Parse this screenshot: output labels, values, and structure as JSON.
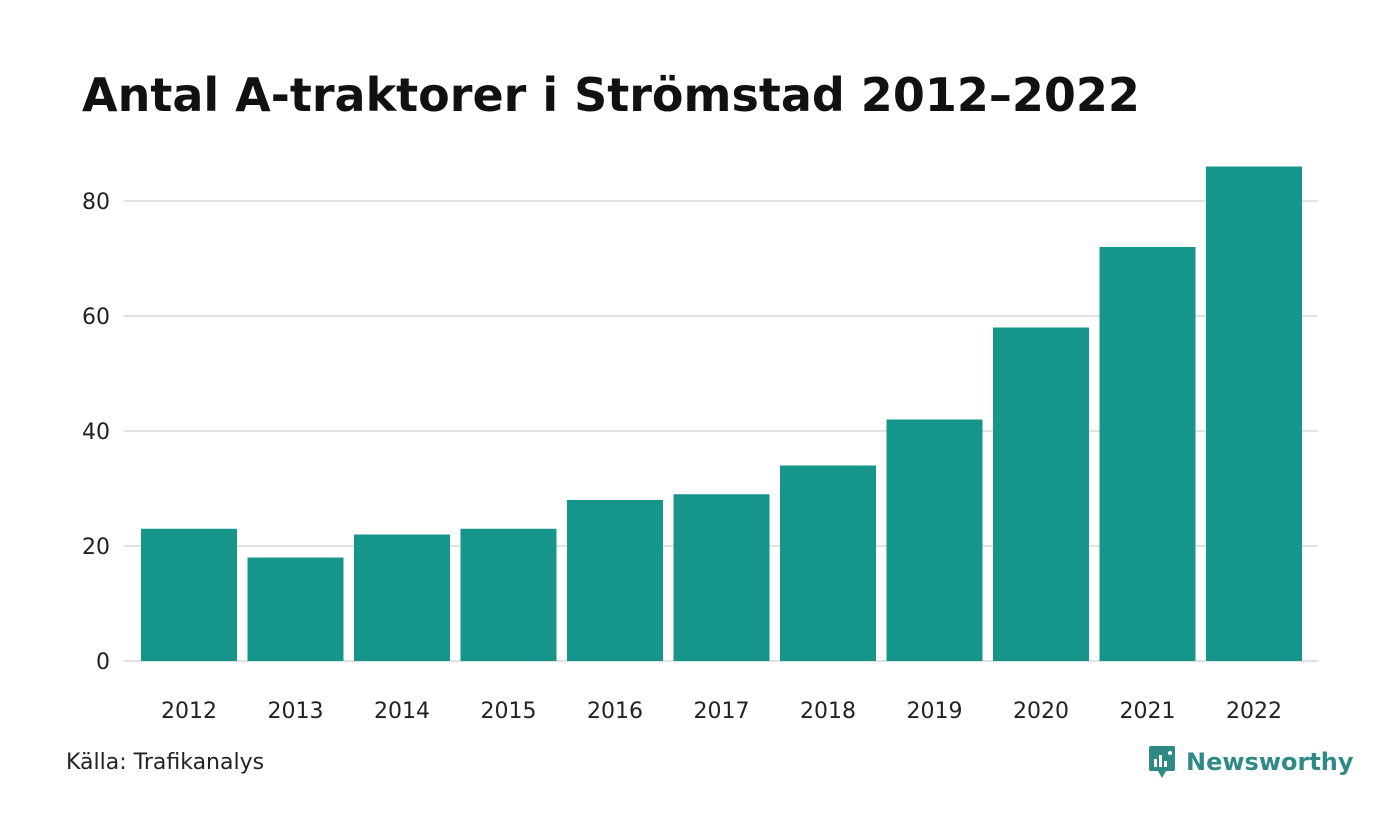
{
  "title": "Antal A-traktorer i Strömstad 2012–2022",
  "source": "Källa: Trafikanalys",
  "brand": {
    "name": "Newsworthy",
    "icon": "newsworthy-logo-icon"
  },
  "colors": {
    "bar": "#16968a",
    "grid": "#e2e2e2",
    "text": "#111111",
    "brand": "#2f8a86"
  },
  "chart_data": {
    "type": "bar",
    "categories": [
      "2012",
      "2013",
      "2014",
      "2015",
      "2016",
      "2017",
      "2018",
      "2019",
      "2020",
      "2021",
      "2022"
    ],
    "values": [
      23,
      18,
      22,
      23,
      28,
      29,
      34,
      42,
      58,
      72,
      86
    ],
    "yticks": [
      0,
      20,
      40,
      60,
      80
    ],
    "ylim": [
      0,
      86
    ],
    "xlabel": "",
    "ylabel": "",
    "grid": true,
    "legend": "none"
  }
}
